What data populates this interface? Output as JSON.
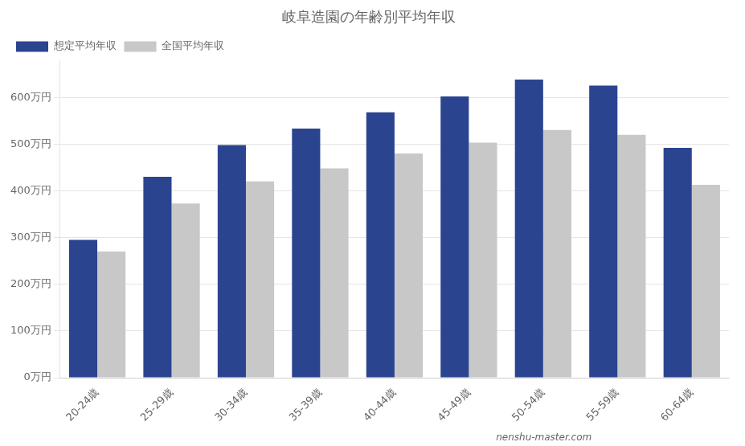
{
  "chart_data": {
    "type": "bar",
    "title": "岐阜造園の年齢別平均年収",
    "categories": [
      "20-24歳",
      "25-29歳",
      "30-34歳",
      "35-39歳",
      "40-44歳",
      "45-49歳",
      "50-54歳",
      "55-59歳",
      "60-64歳"
    ],
    "series": [
      {
        "name": "想定平均年収",
        "color": "#2b4490",
        "values": [
          295,
          430,
          498,
          533,
          568,
          602,
          638,
          625,
          492
        ]
      },
      {
        "name": "全国平均年収",
        "color": "#c8c8c8",
        "values": [
          270,
          373,
          420,
          448,
          480,
          503,
          530,
          520,
          413
        ]
      }
    ],
    "ylim": [
      0,
      680
    ],
    "yticks": [
      {
        "value": 0,
        "label": "0万円"
      },
      {
        "value": 100,
        "label": "100万円"
      },
      {
        "value": 200,
        "label": "200万円"
      },
      {
        "value": 300,
        "label": "300万円"
      },
      {
        "value": 400,
        "label": "400万円"
      },
      {
        "value": 500,
        "label": "500万円"
      },
      {
        "value": 600,
        "label": "600万円"
      }
    ],
    "grid": true,
    "legend": "upper left",
    "annotations": [
      "nenshu-master.com"
    ]
  }
}
